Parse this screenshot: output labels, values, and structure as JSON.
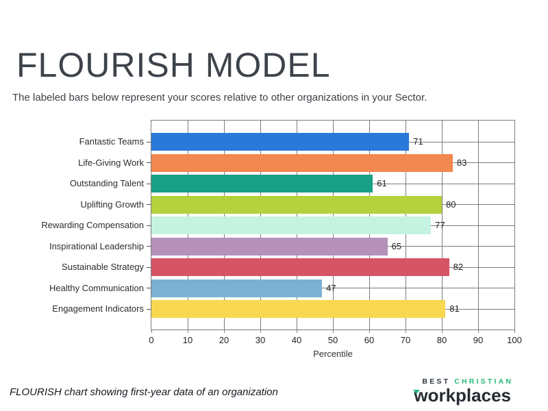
{
  "page": {
    "title": "FLOURISH MODEL",
    "subtitle": "The labeled bars below represent your scores relative to other organizations in your Sector.",
    "caption": "FLOURISH chart showing first-year data of an organization"
  },
  "logo": {
    "best": "BEST",
    "christian": "CHRISTIAN",
    "workplaces": "workplaces",
    "green": "#27b87a",
    "dark": "#272b33"
  },
  "chart_data": {
    "type": "bar",
    "orientation": "horizontal",
    "title": "",
    "xlabel": "Percentile",
    "ylabel": "",
    "xlim": [
      0,
      100
    ],
    "xticks": [
      0,
      10,
      20,
      30,
      40,
      50,
      60,
      70,
      80,
      90,
      100
    ],
    "grid": true,
    "categories": [
      "Fantastic Teams",
      "Life-Giving Work",
      "Outstanding Talent",
      "Uplifting Growth",
      "Rewarding Compensation",
      "Inspirational Leadership",
      "Sustainable Strategy",
      "Healthy Communication",
      "Engagement Indicators"
    ],
    "values": [
      71,
      83,
      61,
      80,
      77,
      65,
      82,
      47,
      81
    ],
    "bar_colors": [
      "#2979d9",
      "#f2874f",
      "#17a086",
      "#b5d23d",
      "#c5f3e1",
      "#b591ba",
      "#d55566",
      "#7cb1d1",
      "#f8d850"
    ],
    "gridline_color": "#7b7b7b",
    "value_labels": true
  }
}
